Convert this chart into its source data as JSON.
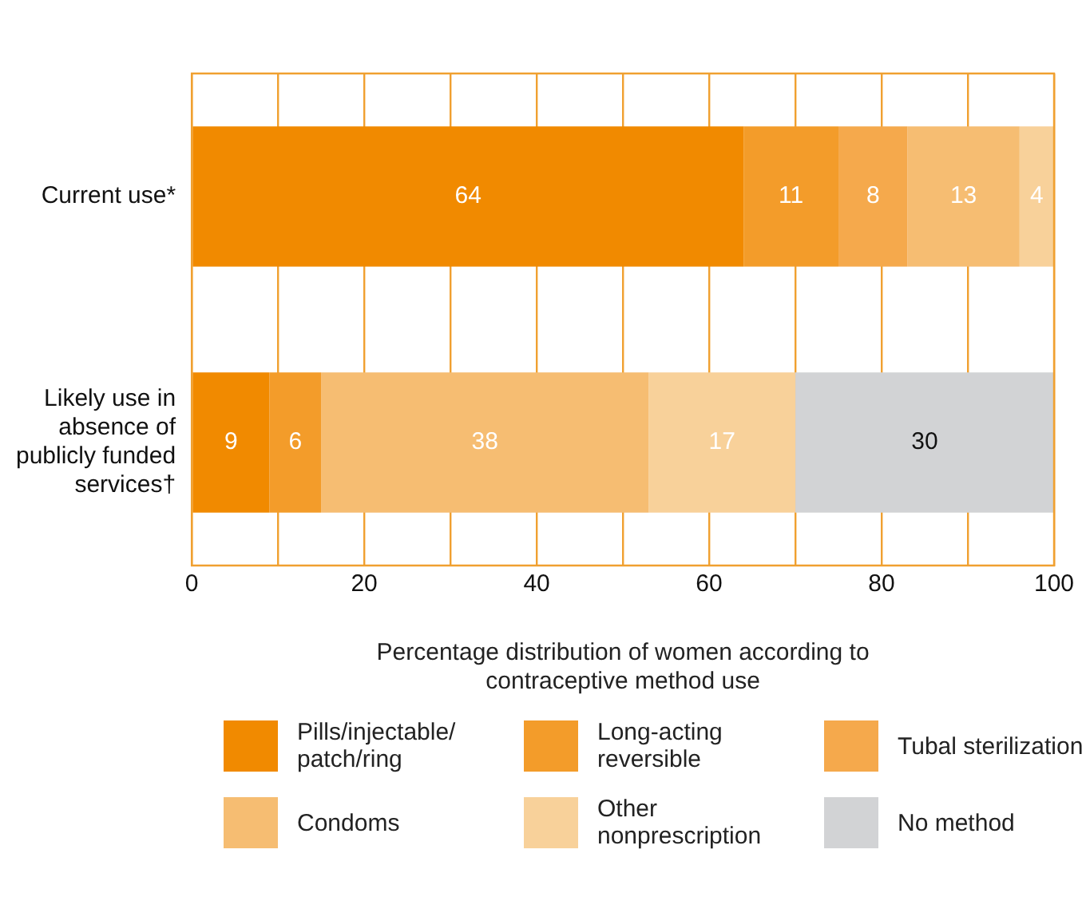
{
  "chart_data": {
    "type": "bar",
    "orientation": "horizontal",
    "stacked": true,
    "xlabel": "Percentage distribution of women according to contraceptive method use",
    "categories": [
      "Current use*",
      "Likely use in absence of publicly funded services†"
    ],
    "series": [
      {
        "name": "Pills/injectable/patch/ring",
        "color": "#f18a00",
        "values": [
          64,
          9
        ]
      },
      {
        "name": "Long-acting reversible",
        "color": "#f39c2a",
        "values": [
          11,
          6
        ]
      },
      {
        "name": "Tubal sterilization",
        "color": "#f5a94c",
        "values": [
          8,
          null
        ]
      },
      {
        "name": "Condoms",
        "color": "#f6bd72",
        "values": [
          13,
          38
        ]
      },
      {
        "name": "Other nonprescription",
        "color": "#f8d19a",
        "values": [
          4,
          17
        ]
      },
      {
        "name": "No method",
        "color": "#d2d3d5",
        "values": [
          null,
          30
        ]
      }
    ],
    "xlim": [
      0,
      100
    ],
    "xticks": [
      0,
      {
        "value": 10,
        "label": null
      },
      20,
      {
        "value": 30,
        "label": null
      },
      40,
      {
        "value": 50,
        "label": null
      },
      60,
      {
        "value": 70,
        "label": null
      },
      80,
      {
        "value": 90,
        "label": null
      },
      100
    ],
    "grid": "x",
    "legend": "bottom",
    "data_labels": true
  }
}
